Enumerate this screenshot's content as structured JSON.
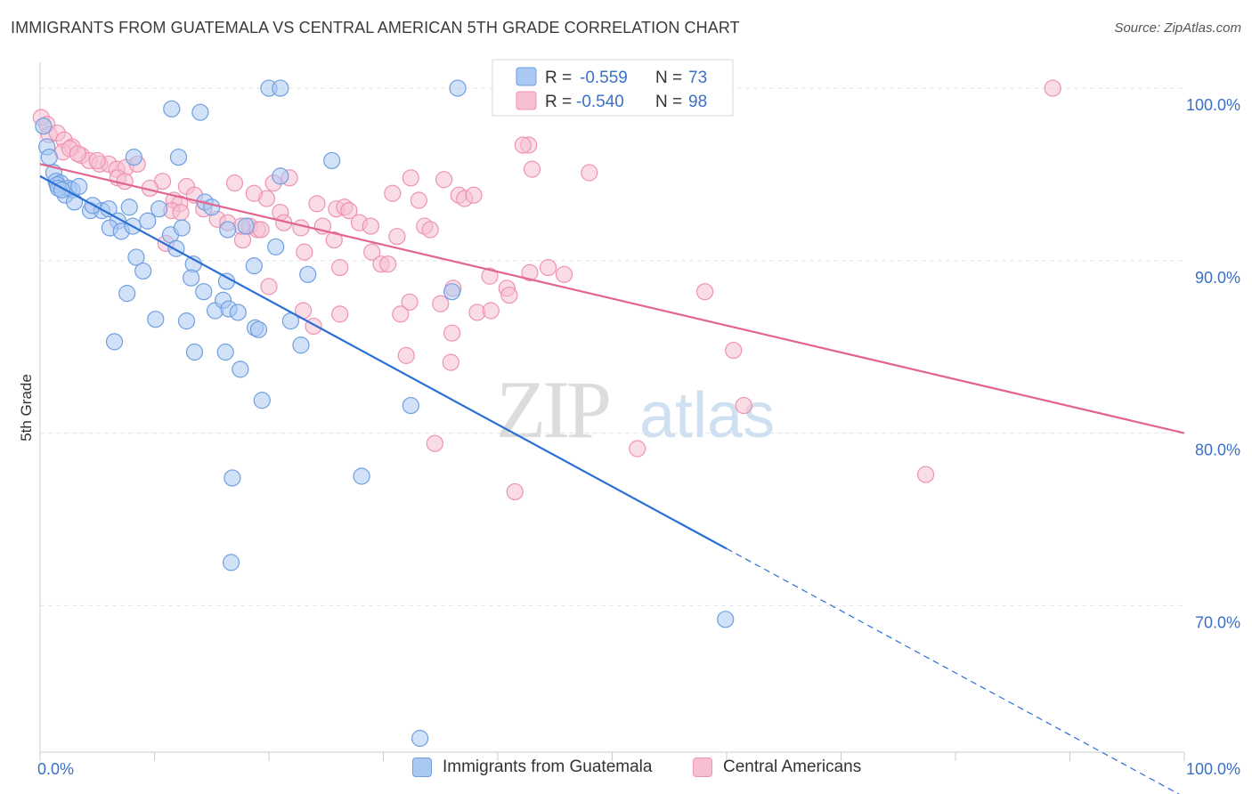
{
  "title": "IMMIGRANTS FROM GUATEMALA VS CENTRAL AMERICAN 5TH GRADE CORRELATION CHART",
  "source": "Source: ZipAtlas.com",
  "watermark": {
    "zip": "ZIP",
    "atlas": "atlas"
  },
  "colors": {
    "blue_fill": "#a9c9f2",
    "blue_stroke": "#6f9fe0",
    "blue_line": "#2a6fd6",
    "pink_fill": "#f6c0d2",
    "pink_stroke": "#ee92b1",
    "pink_line": "#e2648f",
    "axis_text": "#3a70c8",
    "grid": "#e3e3e3"
  },
  "legend_stats": [
    {
      "r_label": "R =",
      "r_value": "-0.559",
      "n_label": "N =",
      "n_value": "73",
      "color": "blue"
    },
    {
      "r_label": "R =",
      "r_value": "-0.540",
      "n_label": "N =",
      "n_value": "98",
      "color": "pink"
    }
  ],
  "chart_data": {
    "type": "scatter",
    "ylabel": "5th Grade",
    "xlim": [
      0,
      100
    ],
    "ylim": [
      61.5,
      101.5
    ],
    "x_tick_labels": [
      "0.0%",
      "100.0%"
    ],
    "y_ticks": [
      {
        "value": 100,
        "label": "100.0%"
      },
      {
        "value": 90,
        "label": "90.0%"
      },
      {
        "value": 80,
        "label": "80.0%"
      },
      {
        "value": 70,
        "label": "70.0%"
      }
    ],
    "grid": true,
    "legend_position": "bottom",
    "series": [
      {
        "name": "Immigrants from Guatemala",
        "color": "blue",
        "trend": {
          "x0": 0,
          "y0": 94.9,
          "x1": 60,
          "y1": 73.3,
          "dash_to_x": 100,
          "dash_to_y": 58.9
        },
        "points": [
          [
            0.3,
            97.8
          ],
          [
            0.6,
            96.6
          ],
          [
            0.8,
            96.0
          ],
          [
            1.2,
            95.1
          ],
          [
            1.4,
            94.6
          ],
          [
            1.8,
            94.5
          ],
          [
            2.2,
            93.8
          ],
          [
            2.5,
            94.2
          ],
          [
            2.8,
            94.1
          ],
          [
            3.4,
            94.3
          ],
          [
            3.0,
            93.4
          ],
          [
            1.5,
            94.4
          ],
          [
            4.4,
            92.9
          ],
          [
            5.4,
            92.9
          ],
          [
            4.6,
            93.2
          ],
          [
            6.0,
            93.0
          ],
          [
            6.8,
            92.3
          ],
          [
            7.8,
            93.1
          ],
          [
            9.4,
            92.3
          ],
          [
            10.4,
            93.0
          ],
          [
            6.1,
            91.9
          ],
          [
            7.1,
            91.7
          ],
          [
            8.1,
            92.0
          ],
          [
            11.4,
            91.5
          ],
          [
            12.4,
            91.9
          ],
          [
            14.4,
            93.4
          ],
          [
            15.0,
            93.1
          ],
          [
            16.4,
            91.8
          ],
          [
            18.0,
            92.0
          ],
          [
            11.9,
            90.7
          ],
          [
            8.4,
            90.2
          ],
          [
            9.0,
            89.4
          ],
          [
            13.4,
            89.8
          ],
          [
            13.2,
            89.0
          ],
          [
            14.3,
            88.2
          ],
          [
            16.3,
            88.8
          ],
          [
            18.7,
            89.7
          ],
          [
            20.6,
            90.8
          ],
          [
            23.4,
            89.2
          ],
          [
            7.6,
            88.1
          ],
          [
            10.1,
            86.6
          ],
          [
            12.8,
            86.5
          ],
          [
            15.3,
            87.1
          ],
          [
            16.0,
            87.7
          ],
          [
            16.5,
            87.2
          ],
          [
            17.3,
            87.0
          ],
          [
            18.8,
            86.1
          ],
          [
            19.1,
            86.0
          ],
          [
            21.9,
            86.5
          ],
          [
            22.8,
            85.1
          ],
          [
            6.5,
            85.3
          ],
          [
            13.5,
            84.7
          ],
          [
            16.2,
            84.7
          ],
          [
            17.5,
            83.7
          ],
          [
            19.4,
            81.9
          ],
          [
            32.4,
            81.6
          ],
          [
            36.0,
            88.2
          ],
          [
            28.1,
            77.5
          ],
          [
            16.8,
            77.4
          ],
          [
            16.7,
            72.5
          ],
          [
            59.9,
            69.2
          ],
          [
            33.2,
            62.3
          ],
          [
            1.6,
            94.2
          ],
          [
            1.9,
            94.1
          ],
          [
            8.2,
            96.0
          ],
          [
            12.1,
            96.0
          ],
          [
            11.5,
            98.8
          ],
          [
            14.0,
            98.6
          ],
          [
            20.0,
            100.0
          ],
          [
            21.0,
            100.0
          ],
          [
            36.5,
            100.0
          ],
          [
            21.0,
            94.9
          ],
          [
            25.5,
            95.8
          ]
        ]
      },
      {
        "name": "Central Americans",
        "color": "pink",
        "trend": {
          "x0": 0,
          "y0": 95.6,
          "x1": 100,
          "y1": 80.0
        },
        "points": [
          [
            0.1,
            98.3
          ],
          [
            0.6,
            97.9
          ],
          [
            0.8,
            97.3
          ],
          [
            1.5,
            97.4
          ],
          [
            2.1,
            97.0
          ],
          [
            2.8,
            96.6
          ],
          [
            3.6,
            96.1
          ],
          [
            4.3,
            95.8
          ],
          [
            5.2,
            95.6
          ],
          [
            6.0,
            95.6
          ],
          [
            6.7,
            95.3
          ],
          [
            7.5,
            95.4
          ],
          [
            8.5,
            95.6
          ],
          [
            2.0,
            96.3
          ],
          [
            2.6,
            96.5
          ],
          [
            3.3,
            96.2
          ],
          [
            5.0,
            95.8
          ],
          [
            6.8,
            94.8
          ],
          [
            7.4,
            94.6
          ],
          [
            10.7,
            94.6
          ],
          [
            9.6,
            94.2
          ],
          [
            11.7,
            93.5
          ],
          [
            12.2,
            93.3
          ],
          [
            12.8,
            94.3
          ],
          [
            13.5,
            93.8
          ],
          [
            14.3,
            93.0
          ],
          [
            15.5,
            92.4
          ],
          [
            16.4,
            92.2
          ],
          [
            11.5,
            92.9
          ],
          [
            12.3,
            92.8
          ],
          [
            17.0,
            94.5
          ],
          [
            17.7,
            91.2
          ],
          [
            18.3,
            92.0
          ],
          [
            19.0,
            91.8
          ],
          [
            19.8,
            93.6
          ],
          [
            20.4,
            94.5
          ],
          [
            21.0,
            92.8
          ],
          [
            21.3,
            92.2
          ],
          [
            21.8,
            94.8
          ],
          [
            22.8,
            91.9
          ],
          [
            23.1,
            90.5
          ],
          [
            24.2,
            93.3
          ],
          [
            24.7,
            92.0
          ],
          [
            25.7,
            91.2
          ],
          [
            25.9,
            93.0
          ],
          [
            26.6,
            93.1
          ],
          [
            27.0,
            92.9
          ],
          [
            27.9,
            92.2
          ],
          [
            28.9,
            92.0
          ],
          [
            29.0,
            90.5
          ],
          [
            29.8,
            89.8
          ],
          [
            30.8,
            93.9
          ],
          [
            31.2,
            91.4
          ],
          [
            32.4,
            94.8
          ],
          [
            33.1,
            93.5
          ],
          [
            33.6,
            92.0
          ],
          [
            34.1,
            91.8
          ],
          [
            35.3,
            94.7
          ],
          [
            36.6,
            93.8
          ],
          [
            37.1,
            93.6
          ],
          [
            37.9,
            93.8
          ],
          [
            26.2,
            89.6
          ],
          [
            30.4,
            89.8
          ],
          [
            36.1,
            88.4
          ],
          [
            39.3,
            89.1
          ],
          [
            42.8,
            89.3
          ],
          [
            44.4,
            89.6
          ],
          [
            45.8,
            89.2
          ],
          [
            40.8,
            88.4
          ],
          [
            41.0,
            88.0
          ],
          [
            32.3,
            87.6
          ],
          [
            35.0,
            87.5
          ],
          [
            38.2,
            87.0
          ],
          [
            39.4,
            87.1
          ],
          [
            23.0,
            87.1
          ],
          [
            23.9,
            86.2
          ],
          [
            26.2,
            86.9
          ],
          [
            31.5,
            86.9
          ],
          [
            36.0,
            85.8
          ],
          [
            35.9,
            84.1
          ],
          [
            32.0,
            84.5
          ],
          [
            58.1,
            88.2
          ],
          [
            60.6,
            84.8
          ],
          [
            61.5,
            81.6
          ],
          [
            52.2,
            79.1
          ],
          [
            77.4,
            77.6
          ],
          [
            34.5,
            79.4
          ],
          [
            41.5,
            76.6
          ],
          [
            43.0,
            95.3
          ],
          [
            48.0,
            95.1
          ],
          [
            42.7,
            96.7
          ],
          [
            42.2,
            96.7
          ],
          [
            18.7,
            93.9
          ],
          [
            88.5,
            100.0
          ],
          [
            19.3,
            91.8
          ],
          [
            11.0,
            91.0
          ],
          [
            17.6,
            92.0
          ],
          [
            20.0,
            88.5
          ]
        ]
      }
    ]
  }
}
